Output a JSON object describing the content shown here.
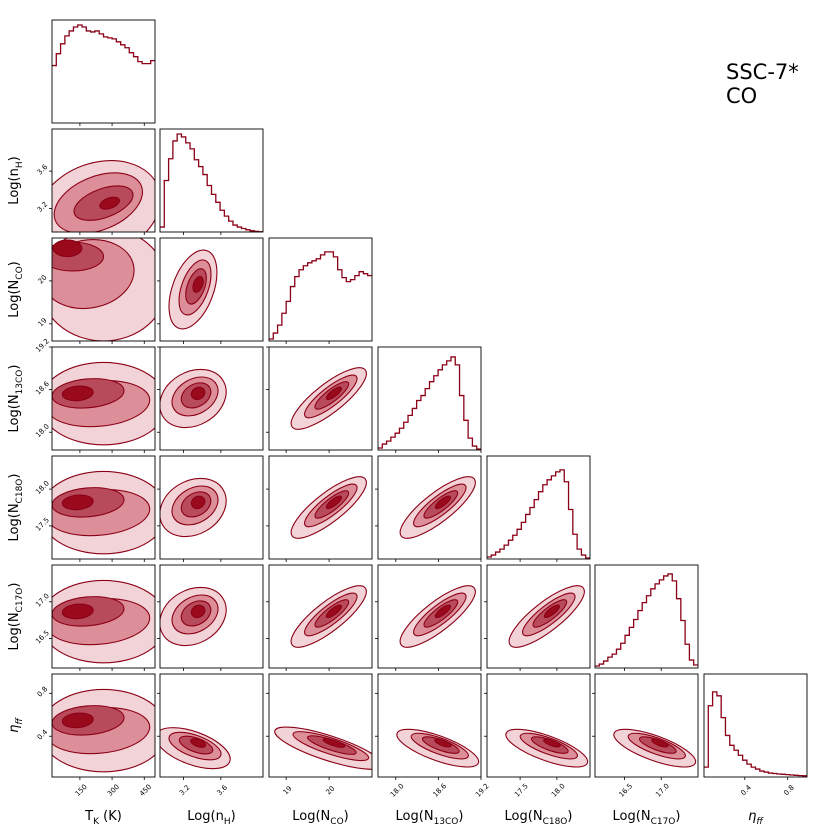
{
  "chart_data": {
    "type": "corner",
    "title_lines": [
      "SSC-7*",
      "CO"
    ],
    "colors": {
      "line": "#8b0016",
      "level1": "#f2d4d8",
      "level2": "#dc8f99",
      "level3": "#b84b5b",
      "level4": "#9a0a1d"
    },
    "parameters": [
      {
        "name": "T_K",
        "label": "T$_K$ (K)",
        "label_base": "T",
        "label_sub": "K",
        "label_suffix": " (K)",
        "italic": false,
        "range": [
          20,
          500
        ],
        "ticks": [
          150,
          300,
          450
        ],
        "tick_labels": [
          "150",
          "300",
          "450"
        ]
      },
      {
        "name": "log_nH",
        "label": "Log(n$_H$)",
        "label_base": "Log(n",
        "label_sub": "H",
        "label_suffix": ")",
        "italic": false,
        "range": [
          2.95,
          4.05
        ],
        "ticks": [
          3.2,
          3.6
        ],
        "tick_labels": [
          "3.2",
          "3.6"
        ]
      },
      {
        "name": "log_NCO",
        "label": "Log(N$_{CO}$)",
        "label_base": "Log(N",
        "label_sub": "CO",
        "label_suffix": ")",
        "italic": false,
        "range": [
          18.6,
          21.0
        ],
        "ticks": [
          19,
          20
        ],
        "tick_labels": [
          "19",
          "20"
        ]
      },
      {
        "name": "log_N13CO",
        "label": "Log(N$_{13CO}$)",
        "label_base": "Log(N",
        "label_sub": "13CO",
        "label_suffix": ")",
        "italic": false,
        "range": [
          17.75,
          19.2
        ],
        "ticks": [
          18.0,
          18.6,
          19.2
        ],
        "tick_labels": [
          "18.0",
          "18.6",
          "19.2"
        ]
      },
      {
        "name": "log_NC18O",
        "label": "Log(N$_{C18O}$)",
        "label_base": "Log(N",
        "label_sub": "C18O",
        "label_suffix": ")",
        "italic": false,
        "range": [
          17.05,
          18.45
        ],
        "ticks": [
          17.5,
          18.0
        ],
        "tick_labels": [
          "17.5",
          "18.0"
        ]
      },
      {
        "name": "log_NC17O",
        "label": "Log(N$_{C17O}$)",
        "label_base": "Log(N",
        "label_sub": "C17O",
        "label_suffix": ")",
        "italic": false,
        "range": [
          16.1,
          17.5
        ],
        "ticks": [
          16.5,
          17.0
        ],
        "tick_labels": [
          "16.5",
          "17.0"
        ]
      },
      {
        "name": "eta_ff",
        "label": "$\\eta_{ff}$",
        "label_base": "η",
        "label_sub": "ff",
        "label_suffix": "",
        "italic": true,
        "range": [
          0.02,
          0.98
        ],
        "ticks": [
          0.4,
          0.8
        ],
        "tick_labels": [
          "0.4",
          "0.8"
        ]
      }
    ],
    "histograms": [
      [
        0.58,
        0.7,
        0.8,
        0.88,
        0.93,
        0.97,
        0.99,
        0.97,
        0.93,
        0.92,
        0.93,
        0.9,
        0.87,
        0.86,
        0.85,
        0.82,
        0.79,
        0.76,
        0.71,
        0.67,
        0.62,
        0.6,
        0.6,
        0.63
      ],
      [
        0.05,
        0.52,
        0.74,
        0.92,
        0.99,
        0.96,
        0.9,
        0.84,
        0.73,
        0.66,
        0.58,
        0.47,
        0.38,
        0.3,
        0.22,
        0.16,
        0.11,
        0.07,
        0.05,
        0.035,
        0.022,
        0.012,
        0.006,
        0.002
      ],
      [
        0.02,
        0.08,
        0.16,
        0.28,
        0.4,
        0.55,
        0.65,
        0.72,
        0.76,
        0.79,
        0.81,
        0.83,
        0.87,
        0.9,
        0.9,
        0.85,
        0.72,
        0.64,
        0.6,
        0.62,
        0.66,
        0.7,
        0.68,
        0.66
      ],
      [
        0.02,
        0.06,
        0.09,
        0.13,
        0.17,
        0.22,
        0.28,
        0.35,
        0.42,
        0.5,
        0.55,
        0.62,
        0.69,
        0.75,
        0.81,
        0.86,
        0.9,
        0.94,
        0.86,
        0.55,
        0.3,
        0.12,
        0.04,
        0.01
      ],
      [
        0.02,
        0.04,
        0.07,
        0.1,
        0.14,
        0.19,
        0.24,
        0.3,
        0.37,
        0.45,
        0.52,
        0.6,
        0.68,
        0.75,
        0.8,
        0.84,
        0.88,
        0.9,
        0.78,
        0.5,
        0.25,
        0.1,
        0.04,
        0.01
      ],
      [
        0.02,
        0.04,
        0.07,
        0.11,
        0.14,
        0.19,
        0.25,
        0.33,
        0.41,
        0.49,
        0.58,
        0.66,
        0.73,
        0.8,
        0.85,
        0.89,
        0.93,
        0.95,
        0.88,
        0.7,
        0.48,
        0.24,
        0.08,
        0.03
      ],
      [
        0.1,
        0.72,
        0.86,
        0.82,
        0.6,
        0.42,
        0.32,
        0.27,
        0.22,
        0.17,
        0.13,
        0.1,
        0.08,
        0.06,
        0.05,
        0.04,
        0.035,
        0.03,
        0.027,
        0.024,
        0.02,
        0.017,
        0.014,
        0.012
      ]
    ]
  }
}
